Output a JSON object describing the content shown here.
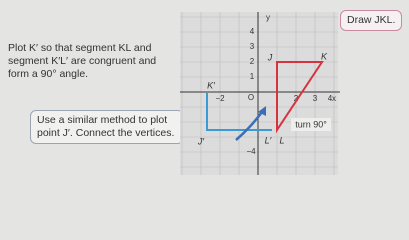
{
  "instructions": {
    "draw": "Draw JKL.",
    "plot_k": "Plot K′ so that segment KL and segment K′L′ are congruent and form a 90° angle.",
    "plot_j": "Use a similar method to plot point J′. Connect the vertices."
  },
  "graph": {
    "y_axis": "y",
    "x_axis": "x",
    "origin": "O",
    "y_ticks": [
      "4",
      "3",
      "2",
      "1",
      "−4"
    ],
    "x_ticks": [
      "−2",
      "2",
      "3",
      "4"
    ],
    "points": {
      "J": "J",
      "K": "K",
      "L": "L",
      "K_prime": "K′",
      "J_prime": "J′",
      "L_prime": "L′"
    },
    "turn": "turn 90°"
  }
}
